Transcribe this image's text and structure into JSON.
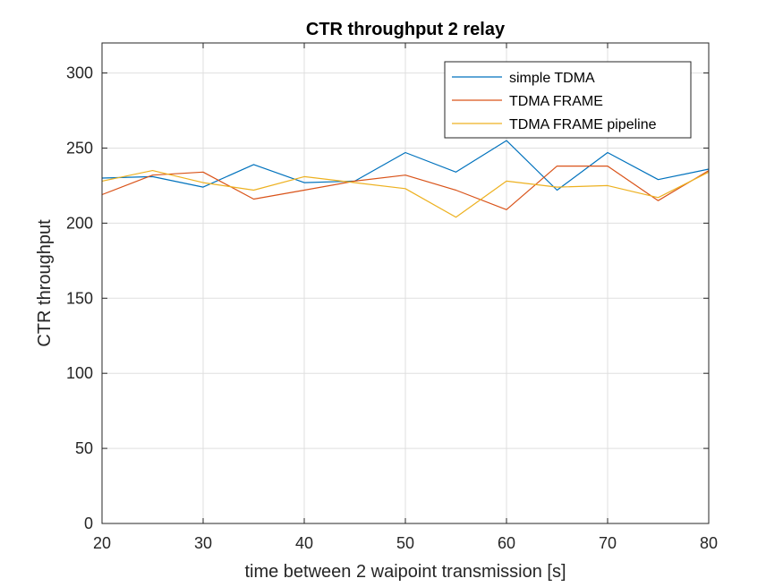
{
  "chart_data": {
    "type": "line",
    "title": "CTR throughput 2 relay",
    "xlabel": "time between 2 waipoint transmission [s]",
    "ylabel": "CTR throughput",
    "xlim": [
      20,
      80
    ],
    "ylim": [
      0,
      320
    ],
    "xticks": [
      20,
      30,
      40,
      50,
      60,
      70,
      80
    ],
    "yticks": [
      0,
      50,
      100,
      150,
      200,
      250,
      300
    ],
    "grid": true,
    "legend_position": "top-right",
    "x": [
      20,
      25,
      30,
      35,
      40,
      45,
      50,
      55,
      60,
      65,
      70,
      75,
      80
    ],
    "series": [
      {
        "name": "simple TDMA",
        "color": "#0072bd",
        "values": [
          230,
          231,
          224,
          239,
          227,
          228,
          247,
          234,
          255,
          222,
          247,
          229,
          236
        ]
      },
      {
        "name": "TDMA FRAME",
        "color": "#d95319",
        "values": [
          219,
          232,
          234,
          216,
          222,
          228,
          232,
          222,
          209,
          238,
          238,
          215,
          235
        ]
      },
      {
        "name": "TDMA FRAME pipeline",
        "color": "#edb120",
        "values": [
          228,
          235,
          227,
          222,
          231,
          227,
          223,
          204,
          228,
          224,
          225,
          217,
          234
        ]
      }
    ]
  }
}
